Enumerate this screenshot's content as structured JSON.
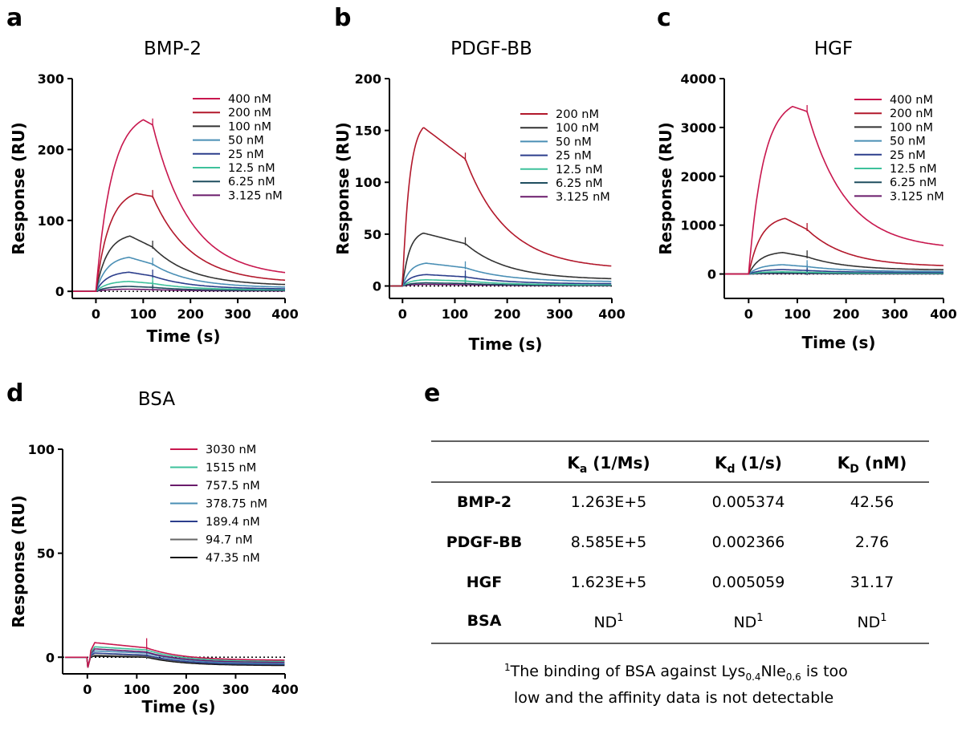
{
  "panels": [
    "a",
    "b",
    "c",
    "d",
    "e"
  ],
  "chart_data": [
    {
      "type": "line",
      "panel": "a",
      "title": "BMP-2",
      "xlabel": "Time (s)",
      "ylabel": "Response (RU)",
      "xlim": [
        -50,
        400
      ],
      "ylim": [
        -10,
        300
      ],
      "xticks": [
        0,
        100,
        200,
        300,
        400
      ],
      "yticks": [
        0,
        100,
        200,
        300
      ],
      "legend": "top-right",
      "injection_end": 120,
      "series": [
        {
          "name": "400 nM",
          "color": "#c8174e",
          "peak": 242,
          "peak_time": 100,
          "plateau": 20
        },
        {
          "name": "200 nM",
          "color": "#b2182b",
          "peak": 138,
          "peak_time": 85,
          "plateau": 12
        },
        {
          "name": "100 nM",
          "color": "#333333",
          "peak": 78,
          "peak_time": 72,
          "plateau": 8
        },
        {
          "name": "50 nM",
          "color": "#4a8fb5",
          "peak": 48,
          "peak_time": 70,
          "plateau": 5
        },
        {
          "name": "25 nM",
          "color": "#2c3e8c",
          "peak": 27,
          "peak_time": 70,
          "plateau": 3
        },
        {
          "name": "12.5 nM",
          "color": "#3ec19b",
          "peak": 14,
          "peak_time": 70,
          "plateau": 2
        },
        {
          "name": "6.25 nM",
          "color": "#1f4e5f",
          "peak": 7,
          "peak_time": 70,
          "plateau": 1
        },
        {
          "name": "3.125 nM",
          "color": "#6a1b6b",
          "peak": 3,
          "peak_time": 70,
          "plateau": 0.5
        }
      ]
    },
    {
      "type": "line",
      "panel": "b",
      "title": "PDGF-BB",
      "xlabel": "Time (s)",
      "ylabel": "Response (RU)",
      "xlim": [
        -25,
        400
      ],
      "ylim": [
        -12,
        200
      ],
      "xticks": [
        0,
        100,
        200,
        300,
        400
      ],
      "yticks": [
        0,
        50,
        100,
        150,
        200
      ],
      "legend": "top-right",
      "injection_end": 120,
      "series": [
        {
          "name": "200 nM",
          "color": "#b2182b",
          "peak": 153,
          "peak_time": 40,
          "plateau": 16
        },
        {
          "name": "100 nM",
          "color": "#333333",
          "peak": 51,
          "peak_time": 40,
          "plateau": 6
        },
        {
          "name": "50 nM",
          "color": "#4a8fb5",
          "peak": 22,
          "peak_time": 45,
          "plateau": 4
        },
        {
          "name": "25 nM",
          "color": "#2c3e8c",
          "peak": 11,
          "peak_time": 45,
          "plateau": 2
        },
        {
          "name": "12.5 nM",
          "color": "#3ec19b",
          "peak": 6,
          "peak_time": 45,
          "plateau": 1
        },
        {
          "name": "6.25 nM",
          "color": "#1f4e5f",
          "peak": 3,
          "peak_time": 45,
          "plateau": 0.5
        },
        {
          "name": "3.125 nM",
          "color": "#6a1b6b",
          "peak": 1.5,
          "peak_time": 45,
          "plateau": 0.3
        }
      ]
    },
    {
      "type": "line",
      "panel": "c",
      "title": "HGF",
      "xlabel": "Time (s)",
      "ylabel": "Response (RU)",
      "xlim": [
        -50,
        400
      ],
      "ylim": [
        -500,
        4000
      ],
      "xticks": [
        0,
        100,
        200,
        300,
        400
      ],
      "yticks": [
        0,
        1000,
        2000,
        3000,
        4000
      ],
      "legend": "top-right",
      "injection_end": 120,
      "series": [
        {
          "name": "400 nM",
          "color": "#c8174e",
          "peak": 3430,
          "peak_time": 90,
          "plateau": 500
        },
        {
          "name": "200 nM",
          "color": "#b2182b",
          "peak": 1140,
          "peak_time": 75,
          "plateau": 150
        },
        {
          "name": "100 nM",
          "color": "#333333",
          "peak": 440,
          "peak_time": 70,
          "plateau": 80
        },
        {
          "name": "50 nM",
          "color": "#4a8fb5",
          "peak": 190,
          "peak_time": 70,
          "plateau": 50
        },
        {
          "name": "25 nM",
          "color": "#2c3e8c",
          "peak": 90,
          "peak_time": 70,
          "plateau": 30
        },
        {
          "name": "12.5 nM",
          "color": "#3ec19b",
          "peak": 45,
          "peak_time": 70,
          "plateau": 15
        },
        {
          "name": "6.25 nM",
          "color": "#1f4e5f",
          "peak": 20,
          "peak_time": 70,
          "plateau": 8
        },
        {
          "name": "3.125 nM",
          "color": "#6a1b6b",
          "peak": 10,
          "peak_time": 70,
          "plateau": 4
        }
      ]
    },
    {
      "type": "line",
      "panel": "d",
      "title": "BSA",
      "xlabel": "Time (s)",
      "ylabel": "Response (RU)",
      "xlim": [
        -50,
        400
      ],
      "ylim": [
        -8,
        100
      ],
      "xticks": [
        0,
        100,
        200,
        300,
        400
      ],
      "yticks": [
        0,
        50,
        100
      ],
      "legend": "top-right",
      "injection_end": 120,
      "series": [
        {
          "name": "3030 nM",
          "color": "#c8174e",
          "start": 7,
          "end": 4.5,
          "tail": -1.5
        },
        {
          "name": "1515 nM",
          "color": "#3ec19b",
          "start": 5,
          "end": 3.5,
          "tail": -2
        },
        {
          "name": "757.5 nM",
          "color": "#6a1b6b",
          "start": 4,
          "end": 2.5,
          "tail": -2.5
        },
        {
          "name": "378.75 nM",
          "color": "#4a8fb5",
          "start": 3,
          "end": 2,
          "tail": -3
        },
        {
          "name": "189.4 nM",
          "color": "#2c3e8c",
          "start": 2,
          "end": 1,
          "tail": -3.5
        },
        {
          "name": "94.7 nM",
          "color": "#666666",
          "start": 1,
          "end": 0.5,
          "tail": -3.5
        },
        {
          "name": "47.35 nM",
          "color": "#111111",
          "start": 0.5,
          "end": 0,
          "tail": -4
        }
      ]
    },
    {
      "type": "table",
      "panel": "e",
      "columns": [
        {
          "main": "K",
          "sub": "a",
          "rest": " (1/Ms)"
        },
        {
          "main": "K",
          "sub": "d",
          "rest": " (1/s)"
        },
        {
          "main": "K",
          "sub": "D",
          "rest": " (nM)"
        }
      ],
      "rows": [
        {
          "label": "BMP-2",
          "cells": [
            {
              "v": "1.263E+5"
            },
            {
              "v": "0.005374"
            },
            {
              "v": "42.56"
            }
          ]
        },
        {
          "label": "PDGF-BB",
          "cells": [
            {
              "v": "8.585E+5"
            },
            {
              "v": "0.002366"
            },
            {
              "v": "2.76"
            }
          ]
        },
        {
          "label": "HGF",
          "cells": [
            {
              "v": "1.623E+5"
            },
            {
              "v": "0.005059"
            },
            {
              "v": "31.17"
            }
          ]
        },
        {
          "label": "BSA",
          "cells": [
            {
              "v": "ND",
              "sup": "1"
            },
            {
              "v": "ND",
              "sup": "1"
            },
            {
              "v": "ND",
              "sup": "1"
            }
          ]
        }
      ],
      "footnote": {
        "marker": "1",
        "part1": "The binding of BSA against Lys",
        "sub1": "0.4",
        "part2": "Nle",
        "sub2": "0.6",
        "part3": " is  too",
        "line2": "low and the affinity data is not detectable"
      }
    }
  ]
}
